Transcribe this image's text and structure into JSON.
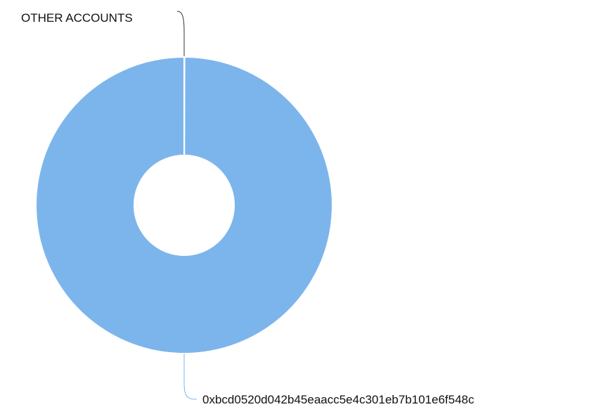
{
  "chart_data": {
    "type": "pie",
    "variant": "donut",
    "title": "",
    "slices": [
      {
        "label": "OTHER ACCOUNTS",
        "value": 0.05,
        "color": "#7cb5ec"
      },
      {
        "label": "0xbcd0520d042b45eaacc5e4c301eb7b101e6f548c",
        "value": 99.95,
        "color": "#7cb5ec"
      }
    ],
    "colors": {
      "slice": "#7cb5ec",
      "slice_border": "#ffffff",
      "connector": "#7cb5ec",
      "connector_dark": "#333333",
      "label": "#111111"
    }
  }
}
